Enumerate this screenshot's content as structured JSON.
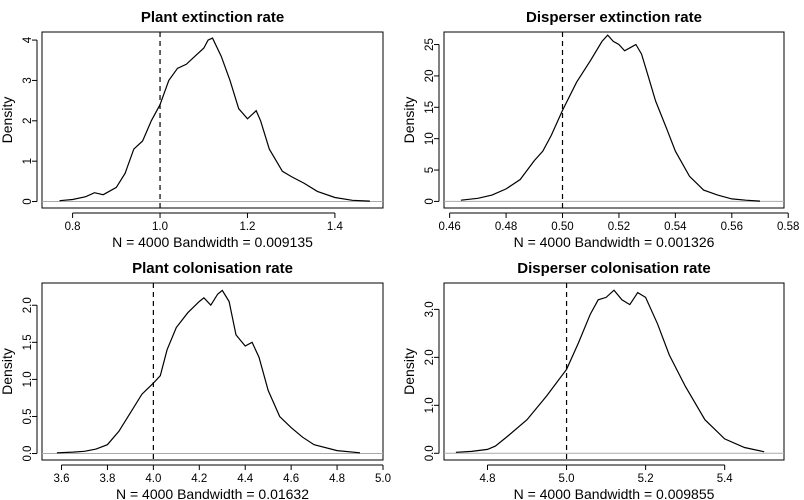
{
  "chart_data": [
    {
      "type": "line",
      "title": "Plant extinction rate",
      "xlabel": "N = 4000   Bandwidth = 0.009135",
      "ylabel": "Density",
      "xlim": [
        0.73,
        1.51
      ],
      "ylim": [
        -0.16,
        4.2
      ],
      "xticks": [
        0.8,
        1.0,
        1.2,
        1.4
      ],
      "xtick_labels": [
        "0.8",
        "1.0",
        "1.2",
        "1.4"
      ],
      "yticks": [
        0,
        1,
        2,
        3,
        4
      ],
      "ytick_labels": [
        "0",
        "1",
        "2",
        "3",
        "4"
      ],
      "ref_line_x": 1.0,
      "series": [
        {
          "x": [
            0.77,
            0.8,
            0.83,
            0.85,
            0.87,
            0.9,
            0.92,
            0.94,
            0.96,
            0.98,
            1.0,
            1.02,
            1.04,
            1.06,
            1.08,
            1.1,
            1.11,
            1.12,
            1.14,
            1.16,
            1.18,
            1.2,
            1.22,
            1.23,
            1.25,
            1.28,
            1.3,
            1.33,
            1.36,
            1.4,
            1.44,
            1.48
          ],
          "y": [
            0.02,
            0.05,
            0.12,
            0.22,
            0.17,
            0.35,
            0.7,
            1.3,
            1.5,
            2.0,
            2.4,
            3.0,
            3.3,
            3.4,
            3.6,
            3.8,
            4.0,
            4.05,
            3.6,
            3.0,
            2.3,
            2.05,
            2.25,
            2.0,
            1.3,
            0.75,
            0.62,
            0.45,
            0.25,
            0.1,
            0.03,
            0.01
          ]
        }
      ]
    },
    {
      "type": "line",
      "title": "Disperser extinction rate",
      "xlabel": "N = 4000   Bandwidth = 0.001326",
      "ylabel": "Density",
      "xlim": [
        0.458,
        0.5785
      ],
      "ylim": [
        -1.05,
        27.0
      ],
      "xticks": [
        0.46,
        0.48,
        0.5,
        0.52,
        0.54,
        0.56,
        0.58
      ],
      "xtick_labels": [
        "0.46",
        "0.48",
        "0.50",
        "0.52",
        "0.54",
        "0.56",
        "0.58"
      ],
      "yticks": [
        0,
        5,
        10,
        15,
        20,
        25
      ],
      "ytick_labels": [
        "0",
        "5",
        "10",
        "15",
        "20",
        "25"
      ],
      "ref_line_x": 0.5,
      "series": [
        {
          "x": [
            0.464,
            0.47,
            0.475,
            0.48,
            0.485,
            0.49,
            0.493,
            0.496,
            0.5,
            0.505,
            0.51,
            0.514,
            0.516,
            0.518,
            0.52,
            0.522,
            0.524,
            0.526,
            0.528,
            0.53,
            0.533,
            0.537,
            0.54,
            0.545,
            0.55,
            0.555,
            0.56,
            0.565,
            0.57
          ],
          "y": [
            0.2,
            0.5,
            1.0,
            2.0,
            3.5,
            6.5,
            8.0,
            10.5,
            14.5,
            19.0,
            22.5,
            25.5,
            26.5,
            25.5,
            25.0,
            24.0,
            24.5,
            25.0,
            23.5,
            20.5,
            16.0,
            11.5,
            8.0,
            4.0,
            1.8,
            1.0,
            0.4,
            0.2,
            0.05
          ]
        }
      ]
    },
    {
      "type": "line",
      "title": "Plant colonisation rate",
      "xlabel": "N = 4000   Bandwidth = 0.01632",
      "ylabel": "Density",
      "xlim": [
        3.515,
        5.0
      ],
      "ylim": [
        -0.087,
        2.3
      ],
      "xticks": [
        3.6,
        3.8,
        4.0,
        4.2,
        4.4,
        4.6,
        4.8,
        5.0
      ],
      "xtick_labels": [
        "3.6",
        "3.8",
        "4.0",
        "4.2",
        "4.4",
        "4.6",
        "4.8",
        "5.0"
      ],
      "yticks": [
        0,
        0.5,
        1.0,
        1.5,
        2.0
      ],
      "ytick_labels": [
        "0.0",
        "0.5",
        "1.0",
        "1.5",
        "2.0"
      ],
      "ref_line_x": 4.0,
      "series": [
        {
          "x": [
            3.58,
            3.65,
            3.7,
            3.75,
            3.8,
            3.85,
            3.9,
            3.95,
            4.0,
            4.03,
            4.06,
            4.1,
            4.15,
            4.2,
            4.22,
            4.25,
            4.28,
            4.3,
            4.33,
            4.36,
            4.4,
            4.43,
            4.46,
            4.5,
            4.55,
            4.6,
            4.65,
            4.7,
            4.8,
            4.9
          ],
          "y": [
            0.01,
            0.02,
            0.03,
            0.06,
            0.12,
            0.3,
            0.55,
            0.8,
            0.95,
            1.05,
            1.4,
            1.7,
            1.9,
            2.05,
            2.1,
            2.0,
            2.15,
            2.2,
            2.05,
            1.6,
            1.45,
            1.5,
            1.3,
            0.85,
            0.5,
            0.35,
            0.22,
            0.12,
            0.04,
            0.01
          ]
        }
      ]
    },
    {
      "type": "line",
      "title": "Disperser colonisation rate",
      "xlabel": "N = 4000   Bandwidth = 0.009855",
      "ylabel": "Density",
      "xlim": [
        4.69,
        5.55
      ],
      "ylim": [
        -0.14,
        3.55
      ],
      "xticks": [
        4.8,
        5.0,
        5.2,
        5.4
      ],
      "xtick_labels": [
        "4.8",
        "5.0",
        "5.2",
        "5.4"
      ],
      "yticks": [
        0,
        1.0,
        2.0,
        3.0
      ],
      "ytick_labels": [
        "0.0",
        "1.0",
        "2.0",
        "3.0"
      ],
      "ref_line_x": 5.0,
      "series": [
        {
          "x": [
            4.72,
            4.76,
            4.8,
            4.82,
            4.85,
            4.9,
            4.95,
            5.0,
            5.03,
            5.06,
            5.08,
            5.1,
            5.12,
            5.14,
            5.16,
            5.18,
            5.2,
            5.23,
            5.26,
            5.3,
            5.35,
            5.4,
            5.45,
            5.5
          ],
          "y": [
            0.02,
            0.04,
            0.08,
            0.15,
            0.35,
            0.7,
            1.2,
            1.75,
            2.3,
            2.9,
            3.2,
            3.25,
            3.4,
            3.2,
            3.1,
            3.35,
            3.25,
            2.7,
            2.05,
            1.4,
            0.7,
            0.3,
            0.12,
            0.03
          ]
        }
      ]
    }
  ]
}
